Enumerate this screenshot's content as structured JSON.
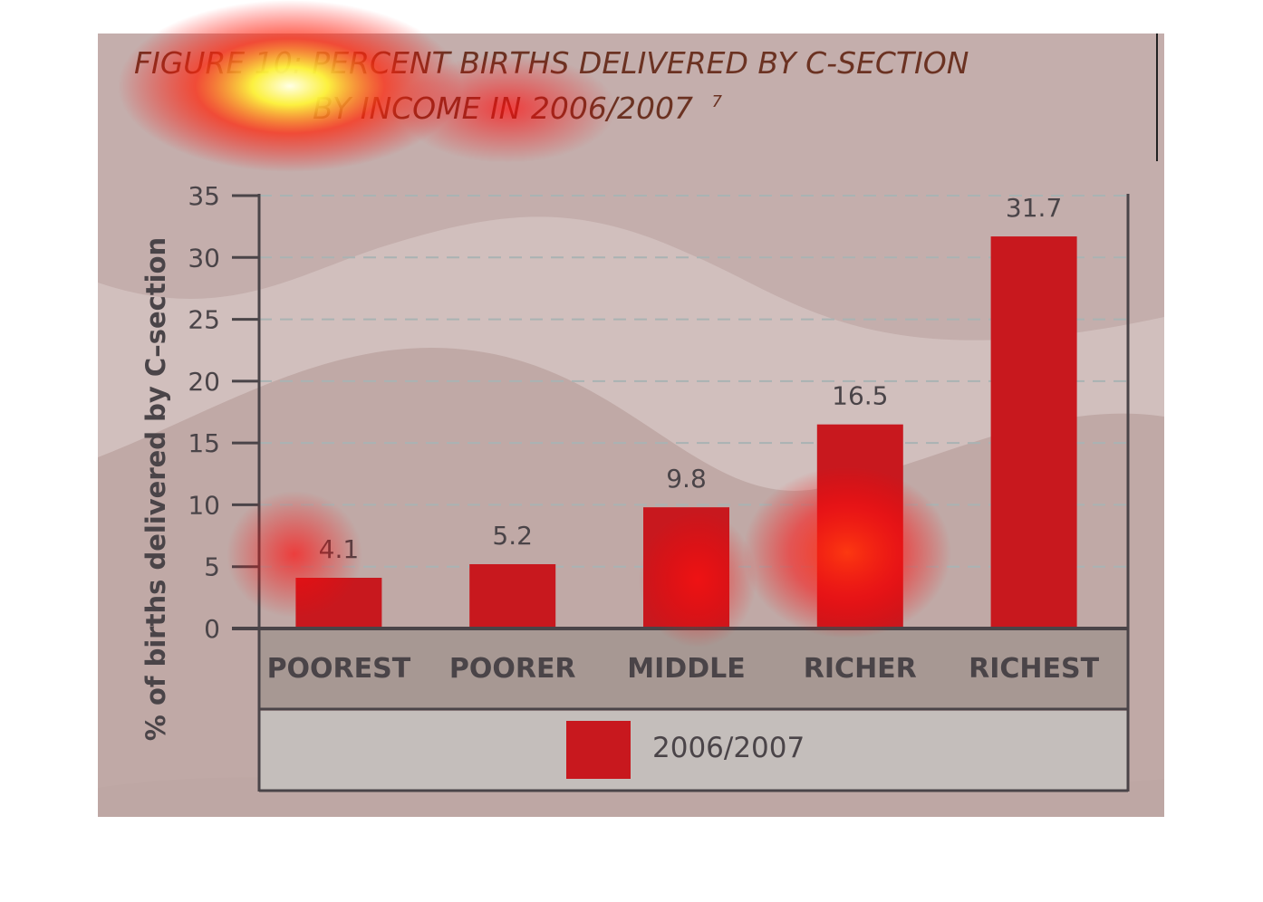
{
  "title": {
    "line1": "FIGURE 10: PERCENT BIRTHS DELIVERED BY C-SECTION",
    "line2": "BY INCOME IN 2006/2007",
    "footnote": "7"
  },
  "colors": {
    "panel_background": "#c4aeac",
    "bar": "#c8181e",
    "category_band": "#a79893",
    "legend_band": "#c4bebb",
    "axis": "#4a4448",
    "title": "#6b3222"
  },
  "chart_data": {
    "type": "bar",
    "title": "FIGURE 10: PERCENT BIRTHS DELIVERED BY C-SECTION BY INCOME IN 2006/2007",
    "xlabel": "",
    "ylabel": "% of births delivered by C–section",
    "categories": [
      "POOREST",
      "POORER",
      "MIDDLE",
      "RICHER",
      "RICHEST"
    ],
    "series": [
      {
        "name": "2006/2007",
        "values": [
          4.1,
          5.2,
          9.8,
          16.5,
          31.7
        ]
      }
    ],
    "data_labels": [
      "4.1",
      "5.2",
      "9.8",
      "16.5",
      "31.7"
    ],
    "ylim": [
      0,
      35
    ],
    "yticks": [
      0,
      5,
      10,
      15,
      20,
      25,
      30,
      35
    ],
    "grid": true,
    "legend": "bottom"
  }
}
